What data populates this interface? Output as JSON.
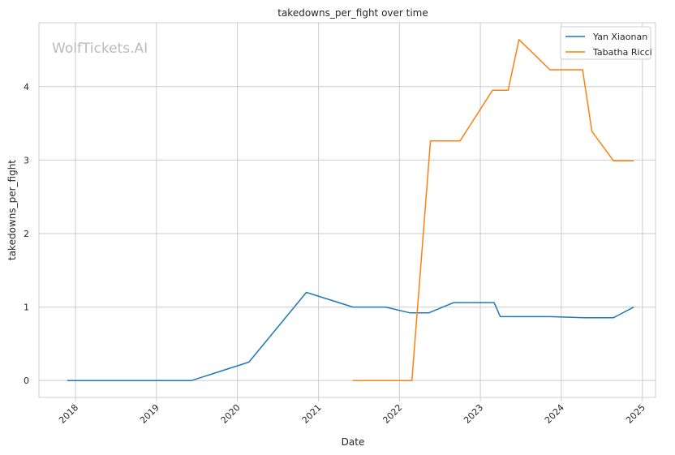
{
  "watermark": "WolfTickets.AI",
  "colors": {
    "series_0": "#1f77b4",
    "series_1": "#ff7f0e",
    "grid": "#cccccc",
    "axes_edge": "#cccccc",
    "text": "#262626",
    "watermark": "#bbbbbb"
  },
  "chart_data": {
    "type": "line",
    "title": "takedowns_per_fight over time",
    "xlabel": "Date",
    "ylabel": "takedowns_per_fight",
    "x_type": "date",
    "xlim": [
      "2017-07-20",
      "2025-03-01"
    ],
    "ylim": [
      -0.23,
      4.87
    ],
    "x_ticks": [
      {
        "value": "2018-01-01",
        "label": "2018"
      },
      {
        "value": "2019-01-01",
        "label": "2019"
      },
      {
        "value": "2020-01-01",
        "label": "2020"
      },
      {
        "value": "2021-01-01",
        "label": "2021"
      },
      {
        "value": "2022-01-01",
        "label": "2022"
      },
      {
        "value": "2023-01-01",
        "label": "2023"
      },
      {
        "value": "2024-01-01",
        "label": "2024"
      },
      {
        "value": "2025-01-01",
        "label": "2025"
      }
    ],
    "y_ticks": [
      0,
      1,
      2,
      3,
      4
    ],
    "grid": true,
    "legend_position": "upper right",
    "series": [
      {
        "name": "Yan Xiaonan",
        "points": [
          {
            "x": "2017-11-25",
            "y": 0
          },
          {
            "x": "2019-06-08",
            "y": 0
          },
          {
            "x": "2020-02-22",
            "y": 0.25
          },
          {
            "x": "2020-11-07",
            "y": 1.2
          },
          {
            "x": "2021-06-05",
            "y": 1.0
          },
          {
            "x": "2021-10-30",
            "y": 1.0
          },
          {
            "x": "2022-02-18",
            "y": 0.92
          },
          {
            "x": "2022-05-13",
            "y": 0.92
          },
          {
            "x": "2022-09-03",
            "y": 1.06
          },
          {
            "x": "2023-03-04",
            "y": 1.06
          },
          {
            "x": "2023-04-01",
            "y": 0.87
          },
          {
            "x": "2023-11-11",
            "y": 0.87
          },
          {
            "x": "2024-04-13",
            "y": 0.855
          },
          {
            "x": "2024-08-24",
            "y": 0.855
          },
          {
            "x": "2024-11-23",
            "y": 1.0
          }
        ]
      },
      {
        "name": "Tabatha Ricci",
        "points": [
          {
            "x": "2021-06-05",
            "y": 0
          },
          {
            "x": "2022-02-26",
            "y": 0
          },
          {
            "x": "2022-05-21",
            "y": 3.26
          },
          {
            "x": "2022-10-01",
            "y": 3.26
          },
          {
            "x": "2023-02-25",
            "y": 3.95
          },
          {
            "x": "2023-05-06",
            "y": 3.95
          },
          {
            "x": "2023-06-24",
            "y": 4.64
          },
          {
            "x": "2023-11-11",
            "y": 4.23
          },
          {
            "x": "2024-04-06",
            "y": 4.23
          },
          {
            "x": "2024-05-18",
            "y": 3.39
          },
          {
            "x": "2024-08-24",
            "y": 2.99
          },
          {
            "x": "2024-11-23",
            "y": 2.99
          }
        ]
      }
    ]
  }
}
